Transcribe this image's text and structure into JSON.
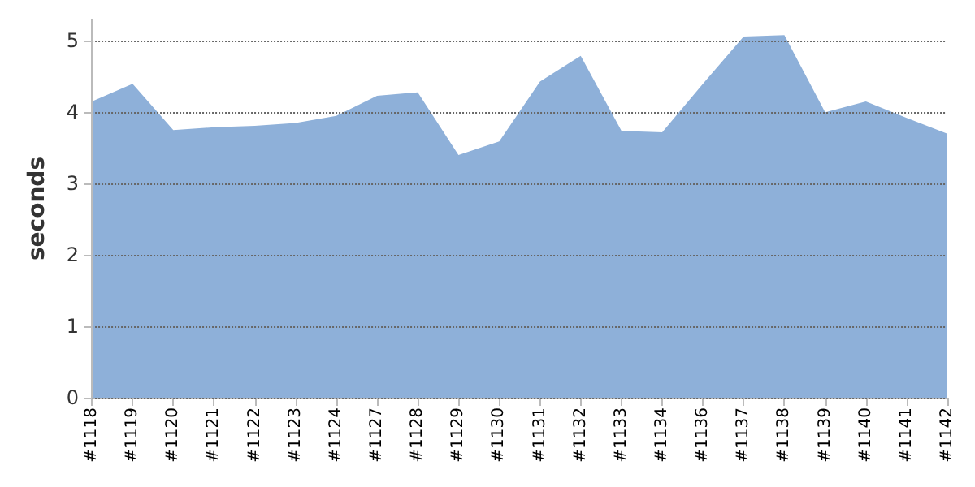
{
  "chart_data": {
    "type": "area",
    "ylabel": "seconds",
    "categories": [
      "#1118",
      "#1119",
      "#1120",
      "#1121",
      "#1122",
      "#1123",
      "#1124",
      "#1127",
      "#1128",
      "#1129",
      "#1130",
      "#1131",
      "#1132",
      "#1133",
      "#1134",
      "#1136",
      "#1137",
      "#1138",
      "#1139",
      "#1140",
      "#1141",
      "#1142"
    ],
    "series": [
      {
        "color": "#8eb0d9",
        "values": [
          4.15,
          4.4,
          3.75,
          3.79,
          3.81,
          3.85,
          3.95,
          4.23,
          4.28,
          3.4,
          3.59,
          4.43,
          4.79,
          3.74,
          3.72,
          4.4,
          5.06,
          5.08,
          4.0,
          4.15,
          3.92,
          3.7
        ]
      }
    ],
    "ylim": [
      0,
      5.3
    ],
    "yticks": [
      0,
      1,
      2,
      3,
      4,
      5
    ],
    "grid": "y"
  }
}
